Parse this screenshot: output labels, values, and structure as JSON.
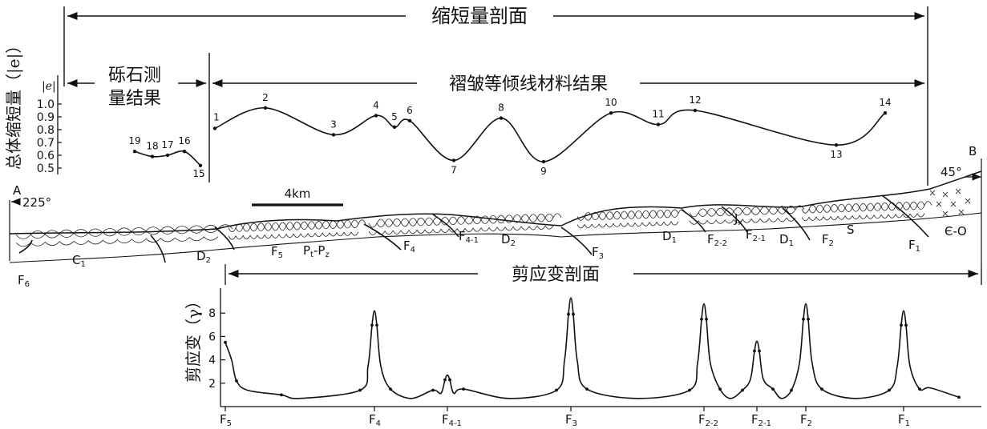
{
  "titles": {
    "shortening_section": "缩短量剖面",
    "pebble_result_line1": "砾石测",
    "pebble_result_line2": "量结果",
    "fold_isogon_result": "褶皱等倾线材料结果",
    "shear_section": "剪应变剖面",
    "scale_bar": "4km"
  },
  "ends": {
    "left_letter": "A",
    "left_azimuth": "225°",
    "right_letter": "B",
    "right_azimuth": "45°"
  },
  "geology_labels": [
    {
      "key": "F6",
      "base": "F",
      "sub": "6"
    },
    {
      "key": "C1",
      "base": "C",
      "sub": "1"
    },
    {
      "key": "D2a",
      "base": "D",
      "sub": "2"
    },
    {
      "key": "F5",
      "base": "F",
      "sub": "5"
    },
    {
      "key": "PtPz",
      "base": "P",
      "sub": "t",
      "mid": "-P",
      "sub2": "z"
    },
    {
      "key": "F4",
      "base": "F",
      "sub": "4"
    },
    {
      "key": "F41",
      "base": "F",
      "sub": "4-1"
    },
    {
      "key": "D2b",
      "base": "D",
      "sub": "2"
    },
    {
      "key": "F3",
      "base": "F",
      "sub": "3"
    },
    {
      "key": "D1a",
      "base": "D",
      "sub": "1"
    },
    {
      "key": "F22",
      "base": "F",
      "sub": "2-2"
    },
    {
      "key": "Jx",
      "base": "J",
      "sub": "x"
    },
    {
      "key": "F21",
      "base": "F",
      "sub": "2-1"
    },
    {
      "key": "D1b",
      "base": "D",
      "sub": "1"
    },
    {
      "key": "F2",
      "base": "F",
      "sub": "2"
    },
    {
      "key": "S",
      "base": "S",
      "sub": ""
    },
    {
      "key": "F1",
      "base": "F",
      "sub": "1"
    },
    {
      "key": "EO",
      "base": "Є-O",
      "sub": ""
    }
  ],
  "chart_data": [
    {
      "type": "line",
      "title": "缩短量剖面",
      "ylabel": "总体缩短量（|e|）",
      "yaxis_label": "|e|",
      "yticks": [
        1.0,
        0.9,
        0.8,
        0.7,
        0.6,
        0.5
      ],
      "ylim": [
        0.45,
        1.05
      ],
      "series": [
        {
          "name": "砾石测量结果",
          "points": [
            {
              "label": "19",
              "value": 0.63
            },
            {
              "label": "18",
              "value": 0.59
            },
            {
              "label": "17",
              "value": 0.6
            },
            {
              "label": "16",
              "value": 0.63
            },
            {
              "label": "15",
              "value": 0.52
            }
          ]
        },
        {
          "name": "褶皱等倾线材料结果",
          "points": [
            {
              "label": "1",
              "value": 0.81
            },
            {
              "label": "2",
              "value": 0.97
            },
            {
              "label": "3",
              "value": 0.76
            },
            {
              "label": "4",
              "value": 0.91
            },
            {
              "label": "5",
              "value": 0.82
            },
            {
              "label": "6",
              "value": 0.87
            },
            {
              "label": "7",
              "value": 0.56
            },
            {
              "label": "8",
              "value": 0.89
            },
            {
              "label": "9",
              "value": 0.55
            },
            {
              "label": "10",
              "value": 0.93
            },
            {
              "label": "11",
              "value": 0.84
            },
            {
              "label": "12",
              "value": 0.95
            },
            {
              "label": "13",
              "value": 0.68
            },
            {
              "label": "14",
              "value": 0.93
            }
          ]
        }
      ]
    },
    {
      "type": "line",
      "title": "剪应变剖面",
      "ylabel": "剪应变（γ）",
      "yticks": [
        2,
        4,
        6,
        8
      ],
      "ylim": [
        0,
        9.6
      ],
      "x_categories": [
        "F5",
        "F4",
        "F4-1",
        "F3",
        "F2-2",
        "F2-1",
        "F2",
        "F1"
      ],
      "fault_peaks": [
        {
          "fault": "F5",
          "gamma": 5.5
        },
        {
          "fault": "F4",
          "gamma": 8.2
        },
        {
          "fault": "F4-1",
          "gamma": 2.7
        },
        {
          "fault": "F3",
          "gamma": 9.3
        },
        {
          "fault": "F2-2",
          "gamma": 8.8
        },
        {
          "fault": "F2-1",
          "gamma": 5.6
        },
        {
          "fault": "F2",
          "gamma": 8.8
        },
        {
          "fault": "F1",
          "gamma": 8.2
        }
      ]
    }
  ]
}
